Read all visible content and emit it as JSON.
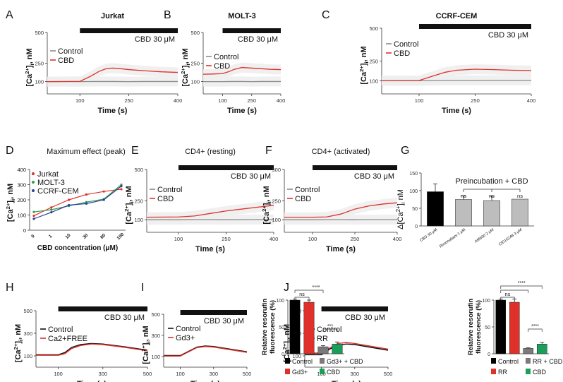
{
  "figure": {
    "panel_letters": [
      "A",
      "B",
      "C",
      "D",
      "E",
      "F",
      "G",
      "H",
      "I",
      "J"
    ]
  },
  "colors": {
    "control": "#8a8a8a",
    "cbd": "#e0302a",
    "band": "#eeeeee",
    "black": "#111111",
    "jurkat": "#e0302a",
    "molt3": "#2e9e4a",
    "ccrfcem": "#2b3f9a",
    "bar_black": "#000000",
    "bar_gray": "#bdbdbd",
    "bar_red": "#e0302a",
    "bar_dgray": "#7a7a7a",
    "bar_green": "#1a9e5a"
  },
  "chart_data": [
    {
      "id": "A",
      "type": "line",
      "title": "Jurkat",
      "xlabel": "Time (s)",
      "ylabel_html": "[Ca2+]i, nM",
      "xlim": [
        0,
        400
      ],
      "ylim": [
        0,
        500
      ],
      "xticks": [
        "100",
        "250",
        "400"
      ],
      "yticks": [
        "100",
        "250",
        "500"
      ],
      "stim_bar": {
        "from": 100,
        "to": 400,
        "label": "CBD 30 μM"
      },
      "legend": [
        "Control",
        "CBD"
      ],
      "series": [
        {
          "name": "Control",
          "x": [
            0,
            100,
            150,
            200,
            250,
            300,
            350,
            400
          ],
          "y": [
            100,
            100,
            101,
            101,
            100,
            101,
            101,
            101
          ]
        },
        {
          "name": "CBD",
          "x": [
            0,
            100,
            130,
            160,
            180,
            200,
            225,
            250,
            300,
            350,
            400
          ],
          "y": [
            100,
            102,
            140,
            185,
            205,
            210,
            205,
            198,
            188,
            180,
            175
          ]
        }
      ]
    },
    {
      "id": "B",
      "type": "line",
      "title": "MOLT-3",
      "xlabel": "Time (s)",
      "ylabel_html": "[Ca2+]i, nM",
      "xlim": [
        0,
        400
      ],
      "ylim": [
        0,
        500
      ],
      "xticks": [
        "100",
        "250",
        "400"
      ],
      "yticks": [
        "100",
        "250",
        "500"
      ],
      "stim_bar": {
        "from": 100,
        "to": 400,
        "label": "CBD 30 μM"
      },
      "legend": [
        "Control",
        "CBD"
      ],
      "series": [
        {
          "name": "Control",
          "x": [
            0,
            100,
            150,
            200,
            250,
            300,
            350,
            400
          ],
          "y": [
            100,
            100,
            101,
            101,
            100,
            101,
            101,
            101
          ]
        },
        {
          "name": "CBD",
          "x": [
            0,
            50,
            100,
            130,
            160,
            200,
            250,
            300,
            350,
            400
          ],
          "y": [
            160,
            162,
            165,
            180,
            200,
            215,
            210,
            205,
            200,
            198
          ]
        }
      ]
    },
    {
      "id": "C",
      "type": "line",
      "title": "CCRF-CEM",
      "xlabel": "Time (s)",
      "ylabel_html": "[Ca2+]i, nM",
      "xlim": [
        0,
        400
      ],
      "ylim": [
        0,
        500
      ],
      "xticks": [
        "100",
        "250",
        "400"
      ],
      "yticks": [
        "100",
        "250",
        "500"
      ],
      "stim_bar": {
        "from": 100,
        "to": 400,
        "label": "CBD 30 μM"
      },
      "legend": [
        "Control",
        "CBD"
      ],
      "series": [
        {
          "name": "Control",
          "x": [
            0,
            100,
            150,
            200,
            250,
            300,
            350,
            400
          ],
          "y": [
            100,
            100,
            103,
            103,
            103,
            104,
            104,
            104
          ]
        },
        {
          "name": "CBD",
          "x": [
            0,
            100,
            130,
            170,
            200,
            250,
            300,
            350,
            400
          ],
          "y": [
            100,
            102,
            130,
            165,
            180,
            188,
            185,
            180,
            178
          ]
        }
      ]
    },
    {
      "id": "D",
      "type": "line",
      "title": "Maximum effect (peak)",
      "xlabel": "CBD concentration (μM)",
      "ylabel_html": "[Ca2+]i, nM",
      "categories": [
        "0",
        "1",
        "10",
        "30",
        "60",
        "100"
      ],
      "ylim": [
        0,
        400
      ],
      "yticks": [
        "0",
        "100",
        "200",
        "300",
        "400"
      ],
      "legend": [
        "Jurkat",
        "MOLT-3",
        "CCRF-CEM"
      ],
      "series": [
        {
          "name": "Jurkat",
          "values": [
            95,
            150,
            200,
            235,
            255,
            270
          ]
        },
        {
          "name": "MOLT-3",
          "values": [
            120,
            135,
            160,
            185,
            205,
            300
          ]
        },
        {
          "name": "CCRF-CEM",
          "values": [
            75,
            118,
            165,
            175,
            200,
            290
          ]
        }
      ]
    },
    {
      "id": "E",
      "type": "line",
      "title": "CD4+ (resting)",
      "xlabel": "Time (s)",
      "ylabel_html": "[Ca2+]i, nM",
      "xlim": [
        0,
        400
      ],
      "ylim": [
        0,
        500
      ],
      "xticks": [
        "100",
        "250",
        "400"
      ],
      "yticks": [
        "100",
        "250",
        "500"
      ],
      "stim_bar": {
        "from": 100,
        "to": 400,
        "label": "CBD 30 μM"
      },
      "legend": [
        "Control",
        "CBD"
      ],
      "series": [
        {
          "name": "Control",
          "x": [
            0,
            100,
            150,
            200,
            250,
            300,
            350,
            400
          ],
          "y": [
            100,
            100,
            101,
            101,
            100,
            101,
            101,
            101
          ]
        },
        {
          "name": "CBD",
          "x": [
            0,
            100,
            150,
            200,
            250,
            300,
            350,
            400
          ],
          "y": [
            120,
            122,
            130,
            150,
            170,
            185,
            200,
            215
          ]
        }
      ]
    },
    {
      "id": "F",
      "type": "line",
      "title": "CD4+ (activated)",
      "xlabel": "Time (s)",
      "ylabel_html": "[Ca2+]i, nM",
      "xlim": [
        0,
        400
      ],
      "ylim": [
        0,
        500
      ],
      "xticks": [
        "100",
        "250",
        "400"
      ],
      "yticks": [
        "100",
        "250",
        "500"
      ],
      "stim_bar": {
        "from": 100,
        "to": 400,
        "label": "CBD 30 μM"
      },
      "legend": [
        "Control",
        "CBD"
      ],
      "series": [
        {
          "name": "Control",
          "x": [
            0,
            100,
            150,
            200,
            250,
            300,
            350,
            400
          ],
          "y": [
            100,
            100,
            101,
            101,
            100,
            101,
            101,
            101
          ]
        },
        {
          "name": "CBD",
          "x": [
            0,
            100,
            150,
            200,
            250,
            300,
            350,
            400
          ],
          "y": [
            120,
            120,
            122,
            145,
            185,
            210,
            225,
            235
          ]
        }
      ]
    },
    {
      "id": "G",
      "type": "bar",
      "title": "Preincubation + CBD",
      "ylabel_html": "Δ[Ca2+]i nM",
      "categories": [
        "CBD 30 μM",
        "Rimonabant 1 μM",
        "AM630 2 μM",
        "CID16248 3 μM"
      ],
      "values": [
        97,
        75,
        72,
        76
      ],
      "errors": [
        22,
        10,
        12,
        0
      ],
      "ylim": [
        0,
        150
      ],
      "yticks": [
        "0",
        "50",
        "100",
        "150"
      ],
      "sig": [
        "ns",
        "ns",
        "ns"
      ]
    },
    {
      "id": "H",
      "type": "line",
      "xlabel": "Time (s)",
      "ylabel_html": "[Ca2+]i, nM",
      "xlim": [
        0,
        500
      ],
      "ylim": [
        0,
        500
      ],
      "xticks": [
        "100",
        "300",
        "500"
      ],
      "yticks": [
        "100",
        "300",
        "500"
      ],
      "stim_bar": {
        "from": 100,
        "to": 500,
        "label": "CBD 30 μM"
      },
      "legend": [
        "Control",
        "Ca2+FREE"
      ],
      "series": [
        {
          "name": "Control",
          "x": [
            0,
            100,
            130,
            160,
            200,
            250,
            300,
            400,
            500
          ],
          "y": [
            110,
            110,
            130,
            175,
            200,
            210,
            205,
            180,
            150
          ]
        },
        {
          "name": "Ca2+FREE",
          "x": [
            0,
            100,
            130,
            160,
            200,
            250,
            300,
            400,
            500
          ],
          "y": [
            105,
            105,
            120,
            165,
            192,
            205,
            200,
            175,
            145
          ]
        }
      ]
    },
    {
      "id": "I",
      "type": "line",
      "xlabel": "Time (s)",
      "ylabel_html": "[Ca2+]i, nM",
      "xlim": [
        0,
        500
      ],
      "ylim": [
        0,
        500
      ],
      "xticks": [
        "100",
        "300",
        "500"
      ],
      "yticks": [
        "100",
        "300",
        "500"
      ],
      "stim_bar": {
        "from": 100,
        "to": 500,
        "label": "CBD 30 μM"
      },
      "legend": [
        "Control",
        "Gd3+"
      ],
      "series": [
        {
          "name": "Control",
          "x": [
            0,
            100,
            150,
            200,
            250,
            300,
            400,
            500
          ],
          "y": [
            110,
            110,
            150,
            190,
            200,
            195,
            170,
            145
          ]
        },
        {
          "name": "Gd3+",
          "x": [
            0,
            100,
            150,
            200,
            250,
            300,
            400,
            500
          ],
          "y": [
            105,
            105,
            145,
            185,
            195,
            190,
            165,
            140
          ]
        }
      ]
    },
    {
      "id": "I-bar",
      "type": "bar",
      "ylabel_lines": [
        "Relative resorufin",
        "fluorescence (%)"
      ],
      "categories": [
        "Control",
        "Gd3+",
        "Gd3+ + CBD",
        "CBD"
      ],
      "values": [
        100,
        96,
        13,
        18
      ],
      "errors": [
        2,
        4,
        2,
        4
      ],
      "ylim": [
        0,
        100
      ],
      "yticks": [
        "0",
        "50",
        "100"
      ],
      "sig": [
        "ns",
        "****",
        "***"
      ]
    },
    {
      "id": "J",
      "type": "line",
      "xlabel": "Time (s)",
      "ylabel_html": "[Ca2+]i, nM",
      "xlim": [
        0,
        500
      ],
      "ylim": [
        0,
        500
      ],
      "xticks": [
        "100",
        "300",
        "500"
      ],
      "yticks": [
        "100",
        "300",
        "500"
      ],
      "stim_bar": {
        "from": 100,
        "to": 500,
        "label": "CBD 30 μM"
      },
      "legend": [
        "Control",
        "RR"
      ],
      "series": [
        {
          "name": "Control",
          "x": [
            0,
            100,
            150,
            200,
            250,
            300,
            400,
            500
          ],
          "y": [
            110,
            110,
            160,
            195,
            205,
            200,
            175,
            150
          ]
        },
        {
          "name": "RR",
          "x": [
            0,
            100,
            150,
            200,
            250,
            300,
            400,
            500
          ],
          "y": [
            125,
            125,
            170,
            210,
            218,
            210,
            185,
            160
          ]
        }
      ]
    },
    {
      "id": "J-bar",
      "type": "bar",
      "ylabel_lines": [
        "Relative resorufin",
        "fluorescence (%)"
      ],
      "categories": [
        "Control",
        "RR",
        "RR + CBD",
        "CBD"
      ],
      "values": [
        100,
        96,
        10,
        18
      ],
      "errors": [
        2,
        6,
        1,
        3
      ],
      "ylim": [
        0,
        100
      ],
      "yticks": [
        "0",
        "50",
        "100"
      ],
      "sig": [
        "ns",
        "****",
        "****"
      ]
    }
  ]
}
